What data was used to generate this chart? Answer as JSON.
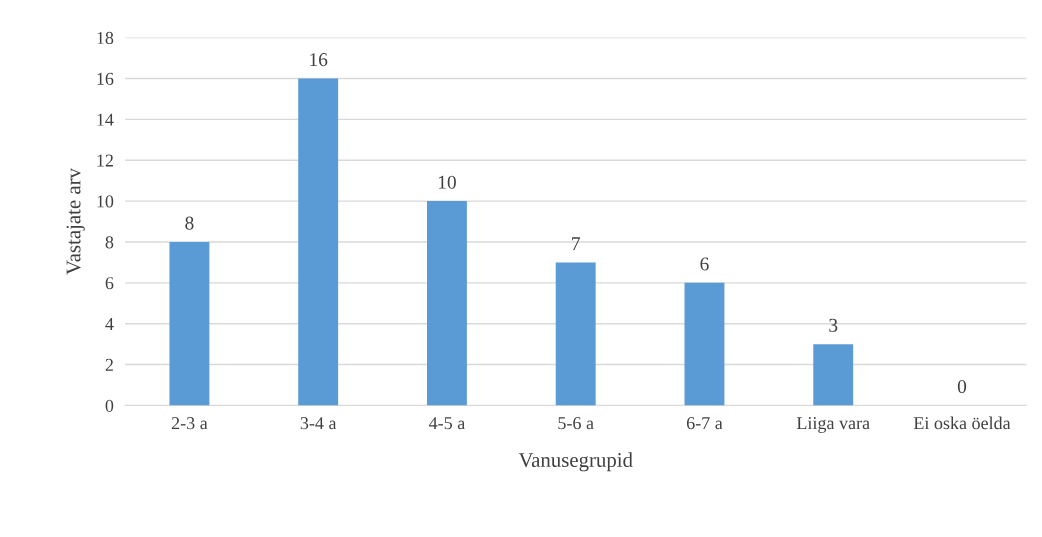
{
  "chart_data": {
    "type": "bar",
    "xlabel": "Vanusegrupid",
    "ylabel": "Vastajate arv",
    "categories": [
      "2-3 a",
      "3-4 a",
      "4-5 a",
      "5-6 a",
      "6-7 a",
      "Liiga vara",
      "Ei oska öelda"
    ],
    "values": [
      8,
      16,
      10,
      7,
      6,
      3,
      0
    ],
    "color": "#5b9bd5",
    "ylim": [
      0,
      18
    ],
    "yticks": [
      0,
      2,
      4,
      6,
      8,
      10,
      12,
      14,
      16,
      18
    ],
    "grid": "y",
    "data_labels": true
  }
}
